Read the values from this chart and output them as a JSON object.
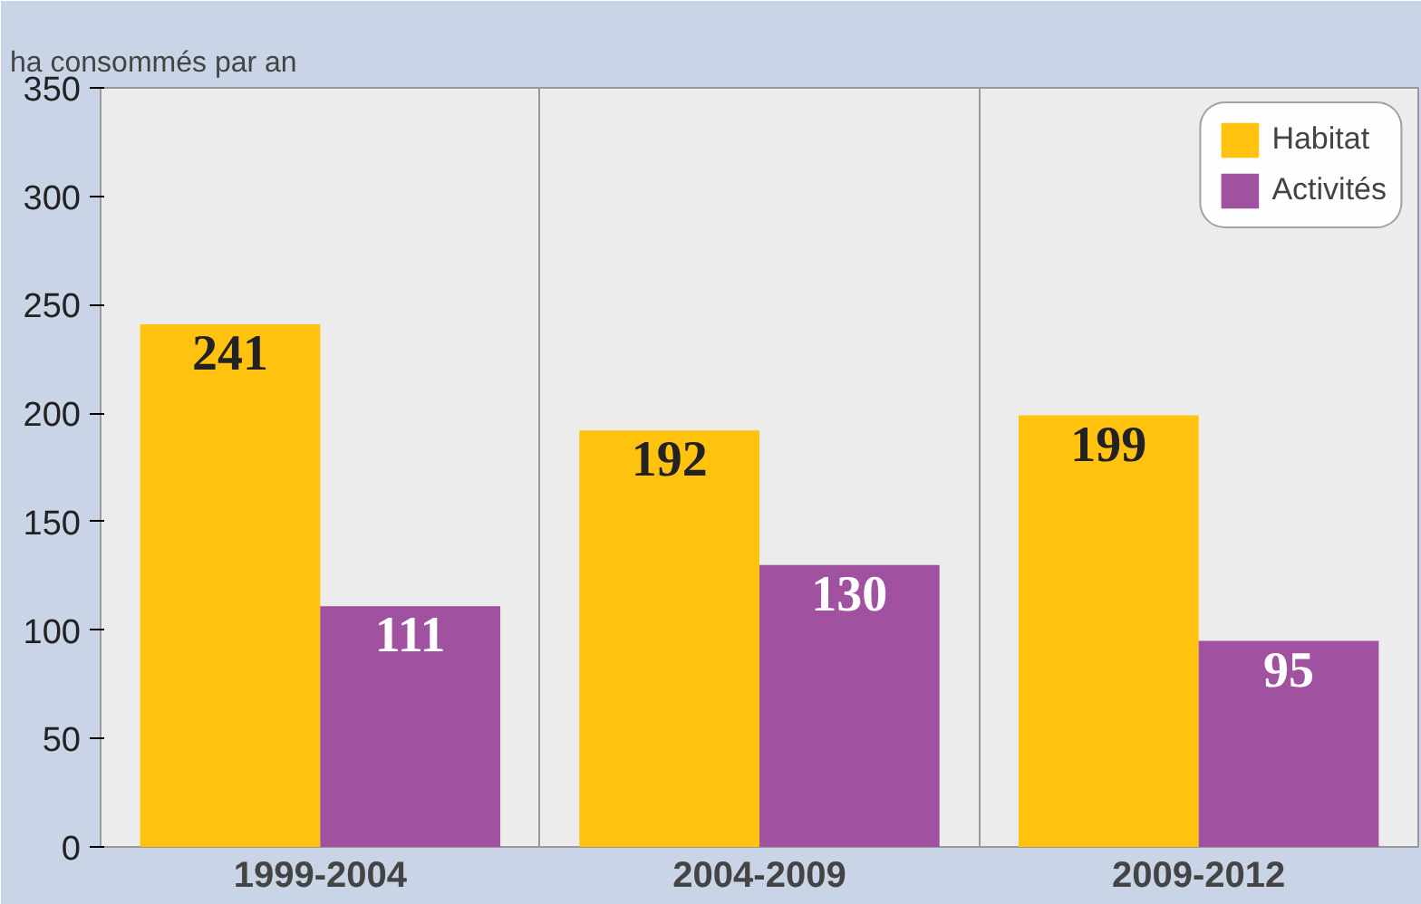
{
  "chart_data": {
    "type": "bar",
    "ylabel": "ha consommés par an",
    "categories": [
      "1999-2004",
      "2004-2009",
      "2009-2012"
    ],
    "series": [
      {
        "name": "Habitat",
        "color": "#ffc20e",
        "values": [
          241,
          192,
          199
        ]
      },
      {
        "name": "Activités",
        "color": "#a0519f",
        "values": [
          111,
          130,
          95
        ]
      }
    ],
    "ylim": [
      0,
      350
    ],
    "yticks": [
      0,
      50,
      100,
      150,
      200,
      250,
      300,
      350
    ],
    "grid": "x",
    "legend": "top right",
    "data_labels": true
  }
}
